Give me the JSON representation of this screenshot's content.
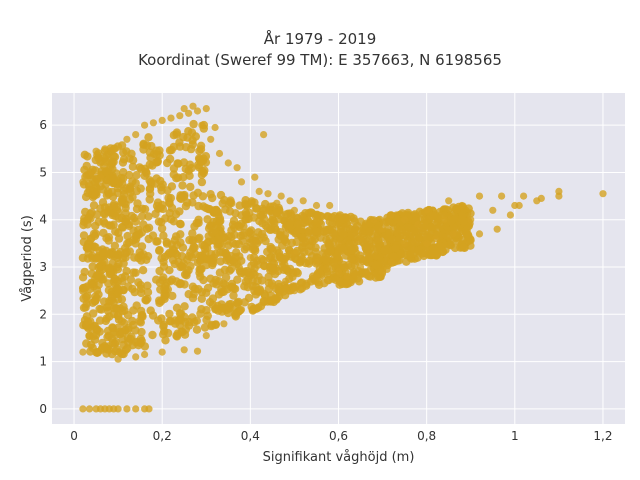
{
  "chart_data": {
    "type": "scatter",
    "title": "År 1979 - 2019",
    "subtitle": "Koordinat (Sweref 99 TM): E 357663, N 6198565",
    "xlabel": "Signifikant våghöjd (m)",
    "ylabel": "Vågperiod (s)",
    "xlim": [
      -0.05,
      1.25
    ],
    "ylim": [
      -0.32,
      6.68
    ],
    "x_ticks": [
      0,
      0.2,
      0.4,
      0.6,
      0.8,
      1.0,
      1.2
    ],
    "x_tick_labels": [
      "0",
      "0,2",
      "0,4",
      "0,6",
      "0,8",
      "1",
      "1,2"
    ],
    "y_ticks": [
      0,
      1,
      2,
      3,
      4,
      5,
      6
    ],
    "y_tick_labels": [
      "0",
      "1",
      "2",
      "3",
      "4",
      "5",
      "6"
    ],
    "grid": true,
    "legend": "none",
    "marker_color": "#d4a220",
    "plot_background": "#e5e5ee",
    "dense_regions": [
      {
        "x": [
          0.02,
          0.12
        ],
        "y_low": [
          1.2,
          1.1
        ],
        "y_high": [
          5.4,
          5.6
        ]
      },
      {
        "x": [
          0.12,
          0.3
        ],
        "y_low": [
          1.2,
          1.7
        ],
        "y_high": [
          5.6,
          6.2
        ]
      },
      {
        "x": [
          0.3,
          0.5
        ],
        "y_low": [
          1.7,
          2.4
        ],
        "y_high": [
          4.6,
          4.2
        ]
      },
      {
        "x": [
          0.5,
          0.7
        ],
        "y_low": [
          2.4,
          2.8
        ],
        "y_high": [
          4.2,
          4.0
        ]
      },
      {
        "x": [
          0.7,
          0.9
        ],
        "y_low": [
          3.0,
          3.4
        ],
        "y_high": [
          4.1,
          4.3
        ]
      }
    ],
    "series": [
      {
        "points": [
          [
            0.02,
            0.0
          ],
          [
            0.035,
            0.0
          ],
          [
            0.05,
            0.0
          ],
          [
            0.06,
            0.0
          ],
          [
            0.07,
            0.0
          ],
          [
            0.08,
            0.0
          ],
          [
            0.09,
            0.0
          ],
          [
            0.1,
            0.0
          ],
          [
            0.12,
            0.0
          ],
          [
            0.14,
            0.0
          ],
          [
            0.16,
            0.0
          ],
          [
            0.17,
            0.0
          ],
          [
            0.02,
            1.2
          ],
          [
            0.03,
            1.85
          ],
          [
            0.03,
            2.3
          ],
          [
            0.03,
            2.6
          ],
          [
            0.02,
            4.8
          ],
          [
            0.04,
            5.0
          ],
          [
            0.05,
            5.45
          ],
          [
            0.07,
            5.5
          ],
          [
            0.09,
            5.5
          ],
          [
            0.06,
            4.9
          ],
          [
            0.12,
            5.7
          ],
          [
            0.14,
            5.8
          ],
          [
            0.16,
            6.0
          ],
          [
            0.18,
            6.05
          ],
          [
            0.2,
            6.1
          ],
          [
            0.22,
            6.15
          ],
          [
            0.24,
            6.2
          ],
          [
            0.26,
            6.25
          ],
          [
            0.25,
            6.35
          ],
          [
            0.27,
            6.4
          ],
          [
            0.28,
            6.3
          ],
          [
            0.3,
            6.35
          ],
          [
            0.29,
            6.0
          ],
          [
            0.31,
            5.7
          ],
          [
            0.32,
            5.95
          ],
          [
            0.33,
            5.4
          ],
          [
            0.35,
            5.2
          ],
          [
            0.37,
            5.1
          ],
          [
            0.38,
            4.8
          ],
          [
            0.41,
            4.9
          ],
          [
            0.42,
            4.6
          ],
          [
            0.44,
            4.55
          ],
          [
            0.46,
            4.35
          ],
          [
            0.47,
            4.5
          ],
          [
            0.43,
            5.8
          ],
          [
            0.5,
            4.2
          ],
          [
            0.49,
            4.4
          ],
          [
            0.52,
            4.4
          ],
          [
            0.55,
            4.3
          ],
          [
            0.58,
            4.3
          ],
          [
            0.4,
            3.2
          ],
          [
            0.42,
            2.8
          ],
          [
            0.45,
            2.6
          ],
          [
            0.48,
            2.7
          ],
          [
            0.5,
            2.5
          ],
          [
            0.55,
            2.8
          ],
          [
            0.6,
            2.9
          ],
          [
            0.62,
            2.8
          ],
          [
            0.65,
            3.0
          ],
          [
            0.7,
            2.9
          ],
          [
            0.71,
            2.95
          ],
          [
            0.72,
            3.1
          ],
          [
            0.6,
            3.5
          ],
          [
            0.65,
            3.6
          ],
          [
            0.68,
            4.0
          ],
          [
            0.7,
            3.8
          ],
          [
            0.72,
            4.1
          ],
          [
            0.75,
            3.5
          ],
          [
            0.75,
            4.0
          ],
          [
            0.78,
            3.9
          ],
          [
            0.8,
            3.5
          ],
          [
            0.8,
            4.2
          ],
          [
            0.82,
            3.6
          ],
          [
            0.84,
            4.0
          ],
          [
            0.85,
            4.4
          ],
          [
            0.86,
            3.7
          ],
          [
            0.88,
            4.3
          ],
          [
            0.9,
            4.0
          ],
          [
            0.92,
            3.7
          ],
          [
            0.92,
            4.5
          ],
          [
            0.95,
            4.2
          ],
          [
            0.96,
            3.8
          ],
          [
            0.97,
            4.5
          ],
          [
            0.99,
            4.1
          ],
          [
            1.0,
            4.3
          ],
          [
            1.01,
            4.3
          ],
          [
            1.02,
            4.5
          ],
          [
            1.05,
            4.4
          ],
          [
            1.06,
            4.45
          ],
          [
            1.1,
            4.5
          ],
          [
            1.1,
            4.6
          ],
          [
            1.2,
            4.55
          ],
          [
            0.1,
            1.05
          ],
          [
            0.14,
            1.1
          ],
          [
            0.16,
            1.15
          ],
          [
            0.2,
            1.2
          ],
          [
            0.25,
            1.25
          ],
          [
            0.28,
            1.22
          ],
          [
            0.3,
            1.55
          ],
          [
            0.34,
            1.8
          ],
          [
            0.38,
            2.1
          ],
          [
            0.55,
            3.1
          ],
          [
            0.5,
            3.3
          ],
          [
            0.45,
            3.4
          ]
        ]
      }
    ]
  }
}
